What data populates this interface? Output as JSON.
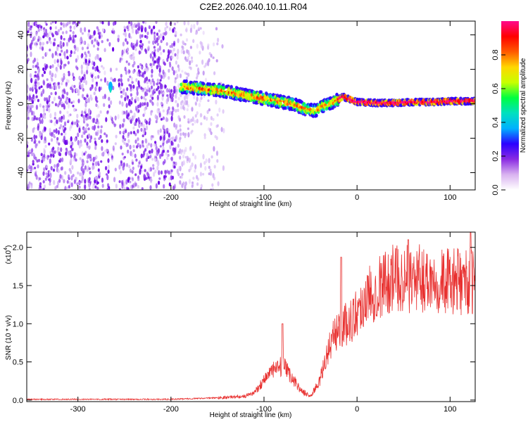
{
  "title": "C2E2.2026.040.10.11.R04",
  "chart_data": [
    {
      "type": "heatmap",
      "name": "spectrogram",
      "xlabel": "Height of straight line (km)",
      "ylabel": "Frequency (Hz)",
      "xlim": [
        -355,
        127
      ],
      "ylim": [
        -50,
        48
      ],
      "xticks": [
        -300,
        -200,
        -100,
        0,
        100
      ],
      "yticks": [
        -40,
        -20,
        0,
        20,
        40
      ],
      "colorbar": {
        "label": "Normalized spectral amplitude",
        "range": [
          0.0,
          1.0
        ],
        "ticks": [
          0.0,
          0.2,
          0.4,
          0.6,
          0.8
        ],
        "tick_labels": [
          "0.0",
          "0.2",
          "0.4",
          "0.6",
          "0.8"
        ],
        "colormap": [
          "#ffffff",
          "#d9b3f0",
          "#8a2be2",
          "#2b00ff",
          "#00b0ff",
          "#00e0c0",
          "#00ff40",
          "#c8ff00",
          "#ffd700",
          "#ff5a00",
          "#ff0000",
          "#ff0a8c"
        ]
      },
      "signal_track": {
        "x": [
          -190,
          -170,
          -150,
          -130,
          -110,
          -90,
          -70,
          -55,
          -45,
          -35,
          -25,
          -15,
          0,
          20,
          40,
          60,
          80,
          100,
          127
        ],
        "y": [
          10,
          9,
          8,
          6,
          4,
          2,
          0,
          -3,
          -4,
          -1,
          1,
          4,
          1,
          0.5,
          0.5,
          1,
          1,
          1.5,
          1.5
        ]
      }
    },
    {
      "type": "line",
      "name": "snr",
      "xlabel": "Height of straight line (km)",
      "ylabel": "SNR (10 * v/v)",
      "scale_label": "(x10",
      "scale_exp": "4",
      "scale_close": ")",
      "xlim": [
        -355,
        127
      ],
      "ylim": [
        -0.02,
        2.2
      ],
      "xticks": [
        -300,
        -200,
        -100,
        0,
        100
      ],
      "yticks": [
        0.0,
        0.5,
        1.0,
        1.5,
        2.0
      ],
      "ytick_labels": [
        "0.0",
        "0.5",
        "1.0",
        "1.5",
        "2.0"
      ],
      "color": "#e8302f",
      "envelope": {
        "x": [
          -355,
          -200,
          -150,
          -120,
          -110,
          -95,
          -80,
          -70,
          -60,
          -50,
          -40,
          -30,
          -20,
          -10,
          0,
          10,
          20,
          30,
          40,
          60,
          80,
          100,
          127
        ],
        "y": [
          0.01,
          0.01,
          0.03,
          0.05,
          0.1,
          0.35,
          0.45,
          0.3,
          0.12,
          0.05,
          0.25,
          0.7,
          0.95,
          1.0,
          1.15,
          1.35,
          1.45,
          1.55,
          1.6,
          1.58,
          1.6,
          1.55,
          1.55
        ]
      },
      "peaks": [
        {
          "x": -80,
          "y": 1.0
        },
        {
          "x": -17,
          "y": 1.87
        },
        {
          "x": 55,
          "y": 2.1
        },
        {
          "x": 122,
          "y": 2.2
        }
      ]
    }
  ]
}
